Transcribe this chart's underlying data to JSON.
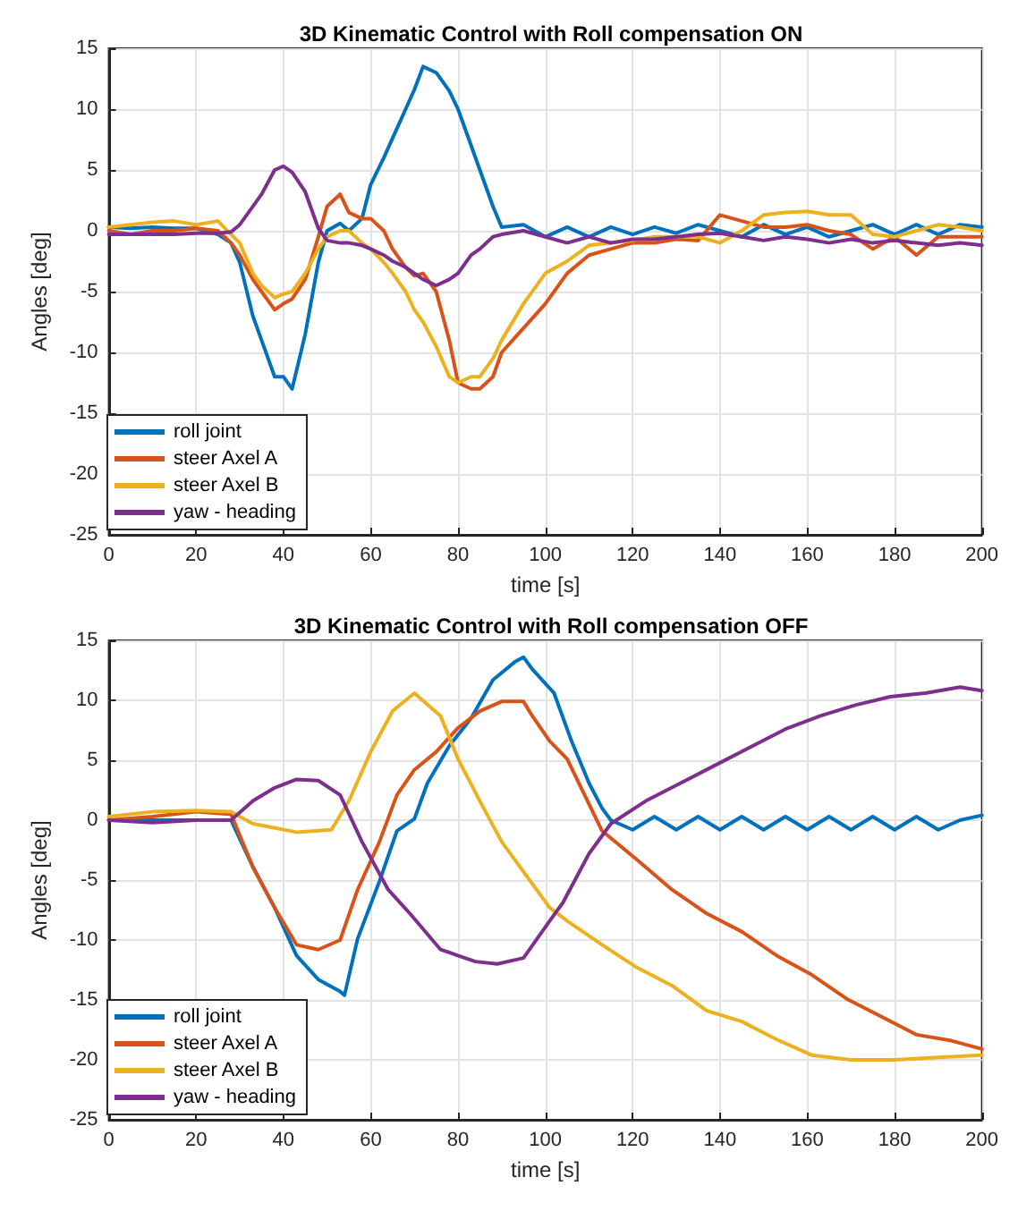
{
  "chart_data": [
    {
      "type": "line",
      "title": "3D Kinematic Control with Roll compensation ON",
      "xlabel": "time [s]",
      "ylabel": "Angles [deg]",
      "xlim": [
        0,
        200
      ],
      "xticks": [
        0,
        20,
        40,
        60,
        80,
        100,
        120,
        140,
        160,
        180,
        200
      ],
      "ylim": [
        -25,
        15
      ],
      "yticks": [
        -25,
        -20,
        -15,
        -10,
        -5,
        0,
        5,
        10,
        15
      ],
      "grid": true,
      "legend": "bottom left",
      "marker": "none",
      "line_style": "solid",
      "series": [
        {
          "name": "roll joint",
          "color": "#0072bd",
          "x": [
            0,
            5,
            10,
            15,
            20,
            25,
            28,
            30,
            33,
            35,
            38,
            40,
            42,
            45,
            48,
            50,
            53,
            55,
            58,
            60,
            63,
            65,
            68,
            70,
            72,
            75,
            78,
            80,
            83,
            85,
            88,
            90,
            95,
            100,
            105,
            110,
            115,
            120,
            125,
            130,
            135,
            140,
            145,
            150,
            155,
            160,
            165,
            170,
            175,
            180,
            185,
            190,
            195,
            200
          ],
          "values": [
            0.3,
            0.2,
            0.3,
            0.2,
            0.2,
            -0.3,
            -1,
            -2.6,
            -7,
            -9,
            -12,
            -12,
            -13,
            -8.5,
            -2.6,
            0,
            0.6,
            0,
            1,
            3.8,
            6,
            7.6,
            10,
            11.6,
            13.5,
            13,
            11.5,
            10,
            7,
            5,
            2,
            0.3,
            0.5,
            -0.5,
            0.3,
            -0.5,
            0.3,
            -0.3,
            0.3,
            -0.2,
            0.5,
            0,
            -0.5,
            0.5,
            -0.3,
            0.3,
            -0.5,
            0,
            0.5,
            -0.3,
            0.5,
            -0.3,
            0.5,
            0.3
          ]
        },
        {
          "name": "steer Axel A",
          "color": "#d95319",
          "x": [
            0,
            5,
            10,
            15,
            20,
            25,
            28,
            30,
            33,
            35,
            38,
            40,
            42,
            45,
            48,
            50,
            53,
            55,
            58,
            60,
            63,
            65,
            68,
            70,
            72,
            75,
            78,
            80,
            83,
            85,
            88,
            90,
            95,
            100,
            105,
            110,
            115,
            120,
            125,
            130,
            135,
            140,
            145,
            150,
            155,
            160,
            165,
            170,
            175,
            180,
            185,
            190,
            195,
            200
          ],
          "values": [
            0,
            -0.3,
            0,
            0,
            0.2,
            0,
            -1,
            -2,
            -4,
            -5,
            -6.5,
            -6,
            -5.6,
            -4,
            -0.5,
            2,
            3,
            1.5,
            1,
            1,
            0,
            -1.5,
            -3,
            -3.7,
            -3.5,
            -5,
            -9,
            -12.5,
            -13,
            -13,
            -12,
            -10,
            -8,
            -6,
            -3.5,
            -2,
            -1.5,
            -1,
            -1,
            -0.7,
            -0.8,
            1.3,
            0.8,
            0.3,
            0.3,
            0.5,
            0,
            -0.3,
            -1.5,
            -0.5,
            -2,
            -0.5,
            -0.5,
            -0.5
          ]
        },
        {
          "name": "steer Axel B",
          "color": "#edb120",
          "x": [
            0,
            5,
            10,
            15,
            20,
            25,
            28,
            30,
            33,
            35,
            38,
            40,
            42,
            45,
            48,
            50,
            53,
            55,
            58,
            60,
            63,
            65,
            68,
            70,
            72,
            75,
            78,
            80,
            83,
            85,
            88,
            90,
            95,
            100,
            105,
            110,
            115,
            120,
            125,
            130,
            135,
            140,
            145,
            150,
            155,
            160,
            165,
            170,
            175,
            180,
            185,
            190,
            195,
            200
          ],
          "values": [
            0.3,
            0.5,
            0.7,
            0.8,
            0.5,
            0.8,
            -0.3,
            -1,
            -3.5,
            -4.5,
            -5.5,
            -5.2,
            -5,
            -3.5,
            -1.5,
            -0.5,
            0,
            0,
            -1,
            -1.5,
            -2.6,
            -3.5,
            -5,
            -6.5,
            -7.5,
            -9.5,
            -12,
            -12.5,
            -12,
            -12,
            -10.5,
            -9,
            -6,
            -3.5,
            -2.5,
            -1.2,
            -1,
            -0.8,
            -0.5,
            -0.5,
            -0.5,
            -1,
            0,
            1.3,
            1.5,
            1.6,
            1.3,
            1.3,
            -0.3,
            -0.5,
            0,
            0.5,
            0.3,
            0
          ]
        },
        {
          "name": "yaw - heading",
          "color": "#7e2f8e",
          "x": [
            0,
            5,
            10,
            15,
            20,
            25,
            28,
            30,
            33,
            35,
            38,
            40,
            42,
            45,
            48,
            50,
            53,
            55,
            58,
            60,
            63,
            65,
            68,
            70,
            72,
            75,
            78,
            80,
            83,
            85,
            88,
            90,
            95,
            100,
            105,
            110,
            115,
            120,
            125,
            130,
            135,
            140,
            145,
            150,
            155,
            160,
            165,
            170,
            175,
            180,
            185,
            190,
            195,
            200
          ],
          "values": [
            -0.3,
            -0.3,
            -0.3,
            -0.3,
            -0.2,
            -0.2,
            -0.1,
            0.5,
            2,
            3,
            5,
            5.3,
            4.8,
            3.2,
            0.2,
            -0.8,
            -1,
            -1,
            -1.2,
            -1.5,
            -2,
            -2.5,
            -3,
            -3.5,
            -4,
            -4.5,
            -4,
            -3.5,
            -2,
            -1.5,
            -0.5,
            -0.3,
            0,
            -0.5,
            -1,
            -0.5,
            -1,
            -0.7,
            -0.7,
            -0.5,
            -0.3,
            -0.2,
            -0.5,
            -0.8,
            -0.5,
            -0.7,
            -1,
            -0.7,
            -1,
            -0.8,
            -1,
            -1.2,
            -1,
            -1.2
          ]
        }
      ]
    },
    {
      "type": "line",
      "title": "3D Kinematic Control with Roll compensation OFF",
      "xlabel": "time [s]",
      "ylabel": "Angles [deg]",
      "xlim": [
        0,
        200
      ],
      "xticks": [
        0,
        20,
        40,
        60,
        80,
        100,
        120,
        140,
        160,
        180,
        200
      ],
      "ylim": [
        -25,
        15
      ],
      "yticks": [
        -25,
        -20,
        -15,
        -10,
        -5,
        0,
        5,
        10,
        15
      ],
      "grid": true,
      "legend": "bottom left",
      "marker": "none",
      "line_style": "solid",
      "series": [
        {
          "name": "roll joint",
          "color": "#0072bd",
          "x": [
            0,
            10,
            20,
            28,
            33,
            38,
            43,
            48,
            53,
            54,
            57,
            62,
            66,
            70,
            73,
            78,
            83,
            88,
            93,
            95,
            97,
            102,
            106,
            110,
            113,
            115,
            120,
            125,
            130,
            135,
            140,
            145,
            150,
            155,
            160,
            165,
            170,
            175,
            180,
            185,
            190,
            195,
            200
          ],
          "values": [
            0,
            0,
            0,
            0,
            -3.9,
            -7.3,
            -11.3,
            -13.3,
            -14.3,
            -14.6,
            -9.9,
            -5.1,
            -0.9,
            0.1,
            3.1,
            6.2,
            8.5,
            11.7,
            13.2,
            13.6,
            12.6,
            10.6,
            6.6,
            3.1,
            1,
            0,
            -0.8,
            0.3,
            -0.8,
            0.3,
            -0.8,
            0.3,
            -0.8,
            0.3,
            -0.8,
            0.3,
            -0.8,
            0.3,
            -0.8,
            0.3,
            -0.8,
            0,
            0.4
          ]
        },
        {
          "name": "steer Axel A",
          "color": "#d95319",
          "x": [
            0,
            10,
            20,
            28,
            33,
            38,
            43,
            48,
            53,
            57,
            62,
            66,
            70,
            75,
            80,
            85,
            90,
            95,
            97,
            101,
            105,
            113,
            121,
            129,
            137,
            145,
            153,
            161,
            169,
            177,
            185,
            193,
            200
          ],
          "values": [
            0,
            0.3,
            0.7,
            0.5,
            -3.9,
            -7.3,
            -10.4,
            -10.8,
            -10,
            -5.8,
            -1.8,
            2.1,
            4.2,
            5.7,
            7.7,
            9.1,
            9.9,
            9.9,
            8.7,
            6.6,
            5.1,
            -0.9,
            -3.3,
            -5.8,
            -7.8,
            -9.3,
            -11.3,
            -12.9,
            -14.9,
            -16.4,
            -17.9,
            -18.4,
            -19.1
          ]
        },
        {
          "name": "steer Axel B",
          "color": "#edb120",
          "x": [
            0,
            10,
            20,
            28,
            33,
            43,
            51,
            55,
            60,
            65,
            70,
            76,
            80,
            85,
            90,
            96,
            101,
            105,
            113,
            121,
            129,
            137,
            145,
            153,
            161,
            170,
            180,
            190,
            200
          ],
          "values": [
            0.3,
            0.7,
            0.8,
            0.7,
            -0.3,
            -1,
            -0.8,
            1.6,
            5.7,
            9.1,
            10.6,
            8.7,
            5.1,
            1.6,
            -1.8,
            -4.8,
            -7.3,
            -8.4,
            -10.4,
            -12.3,
            -13.8,
            -15.9,
            -16.8,
            -18.3,
            -19.6,
            -20,
            -20,
            -19.8,
            -19.6
          ]
        },
        {
          "name": "yaw - heading",
          "color": "#7e2f8e",
          "x": [
            0,
            10,
            20,
            28,
            33,
            38,
            43,
            48,
            53,
            58,
            64,
            69,
            76,
            84,
            89,
            95,
            101,
            104,
            110,
            115,
            123,
            131,
            139,
            147,
            155,
            163,
            171,
            179,
            187,
            195,
            200
          ],
          "values": [
            0,
            -0.2,
            0,
            0,
            1.6,
            2.7,
            3.4,
            3.3,
            2.1,
            -1.8,
            -5.8,
            -7.8,
            -10.8,
            -11.8,
            -12,
            -11.5,
            -8.4,
            -6.9,
            -2.8,
            -0.3,
            1.6,
            3.1,
            4.6,
            6.1,
            7.6,
            8.7,
            9.6,
            10.3,
            10.6,
            11.1,
            10.8
          ]
        }
      ]
    }
  ]
}
